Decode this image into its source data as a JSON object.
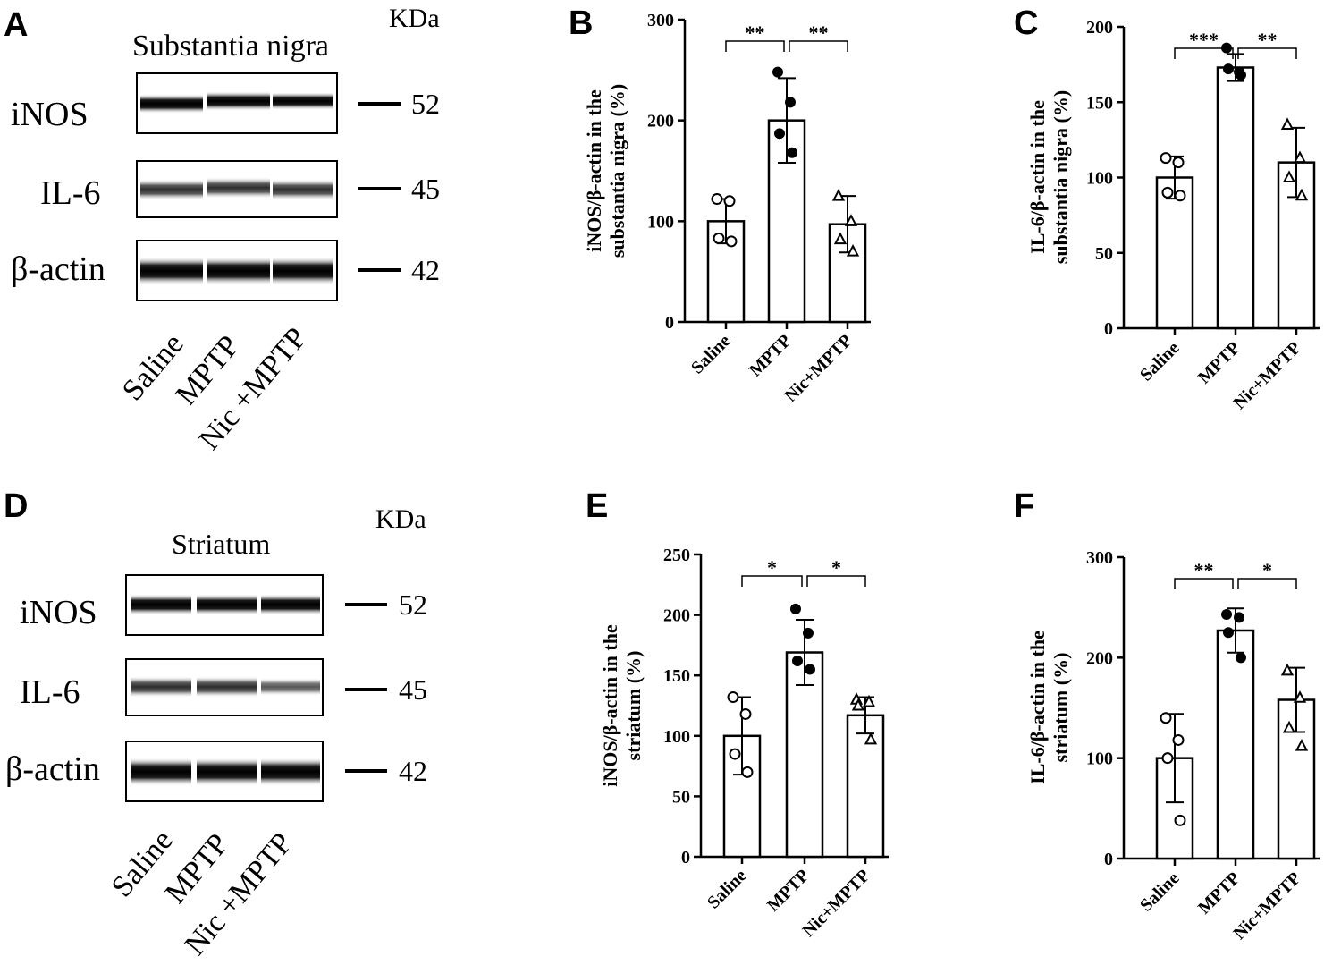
{
  "blot_panels": [
    {
      "panel": "A",
      "title": "Substantia  nigra",
      "unit": "KDa",
      "rows": [
        {
          "name": "iNOS",
          "mw": "52"
        },
        {
          "name": "IL-6",
          "mw": "45"
        },
        {
          "name": "β-actin",
          "mw": "42"
        }
      ],
      "lanes": [
        "Saline",
        "MPTP",
        "Nic +MPTP"
      ]
    },
    {
      "panel": "D",
      "title": "Striatum",
      "unit": "KDa",
      "rows": [
        {
          "name": "iNOS",
          "mw": "52"
        },
        {
          "name": "IL-6",
          "mw": "45"
        },
        {
          "name": "β-actin",
          "mw": "42"
        }
      ],
      "lanes": [
        "Saline",
        "MPTP",
        "Nic +MPTP"
      ]
    }
  ],
  "chart_data": [
    {
      "panel": "B",
      "type": "bar",
      "categories": [
        "Saline",
        "MPTP",
        "Nic+MPTP"
      ],
      "ylabel_line1": "iNOS/β-actin in the",
      "ylabel_line2": "substantia nigra (%)",
      "ylim": [
        0,
        300
      ],
      "yticks": [
        "0",
        "100",
        "200",
        "300"
      ],
      "values": [
        100,
        200,
        97
      ],
      "errors": [
        22,
        42,
        28
      ],
      "points": [
        [
          122,
          120,
          83,
          80
        ],
        [
          248,
          218,
          187,
          168
        ],
        [
          125,
          100,
          82,
          70
        ]
      ],
      "markers": [
        "circle-open",
        "circle-filled",
        "triangle-open"
      ],
      "comparisons": [
        {
          "from": 0,
          "to": 1,
          "label": "**"
        },
        {
          "from": 1,
          "to": 2,
          "label": "**"
        }
      ]
    },
    {
      "panel": "C",
      "type": "bar",
      "categories": [
        "Saline",
        "MPTP",
        "Nic+MPTP"
      ],
      "ylabel_line1": "IL-6/β-actin in the",
      "ylabel_line2": "substantia nigra (%)",
      "ylim": [
        0,
        200
      ],
      "yticks": [
        "0",
        "50",
        "100",
        "150",
        "200"
      ],
      "values": [
        100,
        173,
        110
      ],
      "errors": [
        14,
        9,
        23
      ],
      "points": [
        [
          113,
          110,
          90,
          88
        ],
        [
          186,
          170,
          172,
          168
        ],
        [
          135,
          113,
          100,
          88
        ]
      ],
      "markers": [
        "circle-open",
        "circle-filled",
        "triangle-open"
      ],
      "comparisons": [
        {
          "from": 0,
          "to": 1,
          "label": "***"
        },
        {
          "from": 1,
          "to": 2,
          "label": "**"
        }
      ]
    },
    {
      "panel": "E",
      "type": "bar",
      "categories": [
        "Saline",
        "MPTP",
        "Nic+MPTP"
      ],
      "ylabel_line1": "iNOS/β-actin in the",
      "ylabel_line2": "striatum (%)",
      "ylim": [
        0,
        250
      ],
      "yticks": [
        "0",
        "50",
        "100",
        "150",
        "200",
        "250"
      ],
      "values": [
        100,
        169,
        117
      ],
      "errors": [
        32,
        27,
        15
      ],
      "points": [
        [
          132,
          118,
          85,
          70
        ],
        [
          205,
          185,
          162,
          155
        ],
        [
          130,
          128,
          125,
          97
        ]
      ],
      "markers": [
        "circle-open",
        "circle-filled",
        "triangle-open"
      ],
      "comparisons": [
        {
          "from": 0,
          "to": 1,
          "label": "*"
        },
        {
          "from": 1,
          "to": 2,
          "label": "*"
        }
      ]
    },
    {
      "panel": "F",
      "type": "bar",
      "categories": [
        "Saline",
        "MPTP",
        "Nic+MPTP"
      ],
      "ylabel_line1": "IL-6/β-actin in the",
      "ylabel_line2": "striatum (%)",
      "ylim": [
        0,
        300
      ],
      "yticks": [
        "0",
        "100",
        "200",
        "300"
      ],
      "values": [
        100,
        227,
        158
      ],
      "errors": [
        44,
        22,
        32
      ],
      "points": [
        [
          140,
          118,
          100,
          38
        ],
        [
          243,
          240,
          225,
          200
        ],
        [
          187,
          160,
          130,
          112
        ]
      ],
      "markers": [
        "circle-open",
        "circle-filled",
        "triangle-open"
      ],
      "comparisons": [
        {
          "from": 0,
          "to": 1,
          "label": "**"
        },
        {
          "from": 1,
          "to": 2,
          "label": "*"
        }
      ]
    }
  ]
}
